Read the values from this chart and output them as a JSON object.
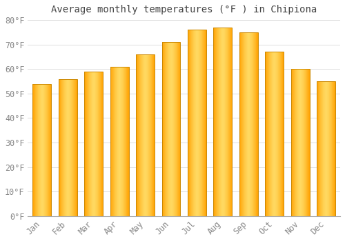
{
  "title": "Average monthly temperatures (°F ) in Chipiona",
  "months": [
    "Jan",
    "Feb",
    "Mar",
    "Apr",
    "May",
    "Jun",
    "Jul",
    "Aug",
    "Sep",
    "Oct",
    "Nov",
    "Dec"
  ],
  "values": [
    54,
    56,
    59,
    61,
    66,
    71,
    76,
    77,
    75,
    67,
    60,
    55
  ],
  "background_color": "#FFFFFF",
  "grid_color": "#DDDDDD",
  "ylim": [
    0,
    80
  ],
  "yticks": [
    0,
    10,
    20,
    30,
    40,
    50,
    60,
    70,
    80
  ],
  "ytick_labels": [
    "0°F",
    "10°F",
    "20°F",
    "30°F",
    "40°F",
    "50°F",
    "60°F",
    "70°F",
    "80°F"
  ],
  "title_fontsize": 10,
  "tick_fontsize": 8.5,
  "title_color": "#444444",
  "tick_color": "#888888",
  "bar_edge_color": "#CC8800",
  "bar_center_color": "#FFD966",
  "bar_side_color": "#FFA500",
  "bar_width": 0.72
}
